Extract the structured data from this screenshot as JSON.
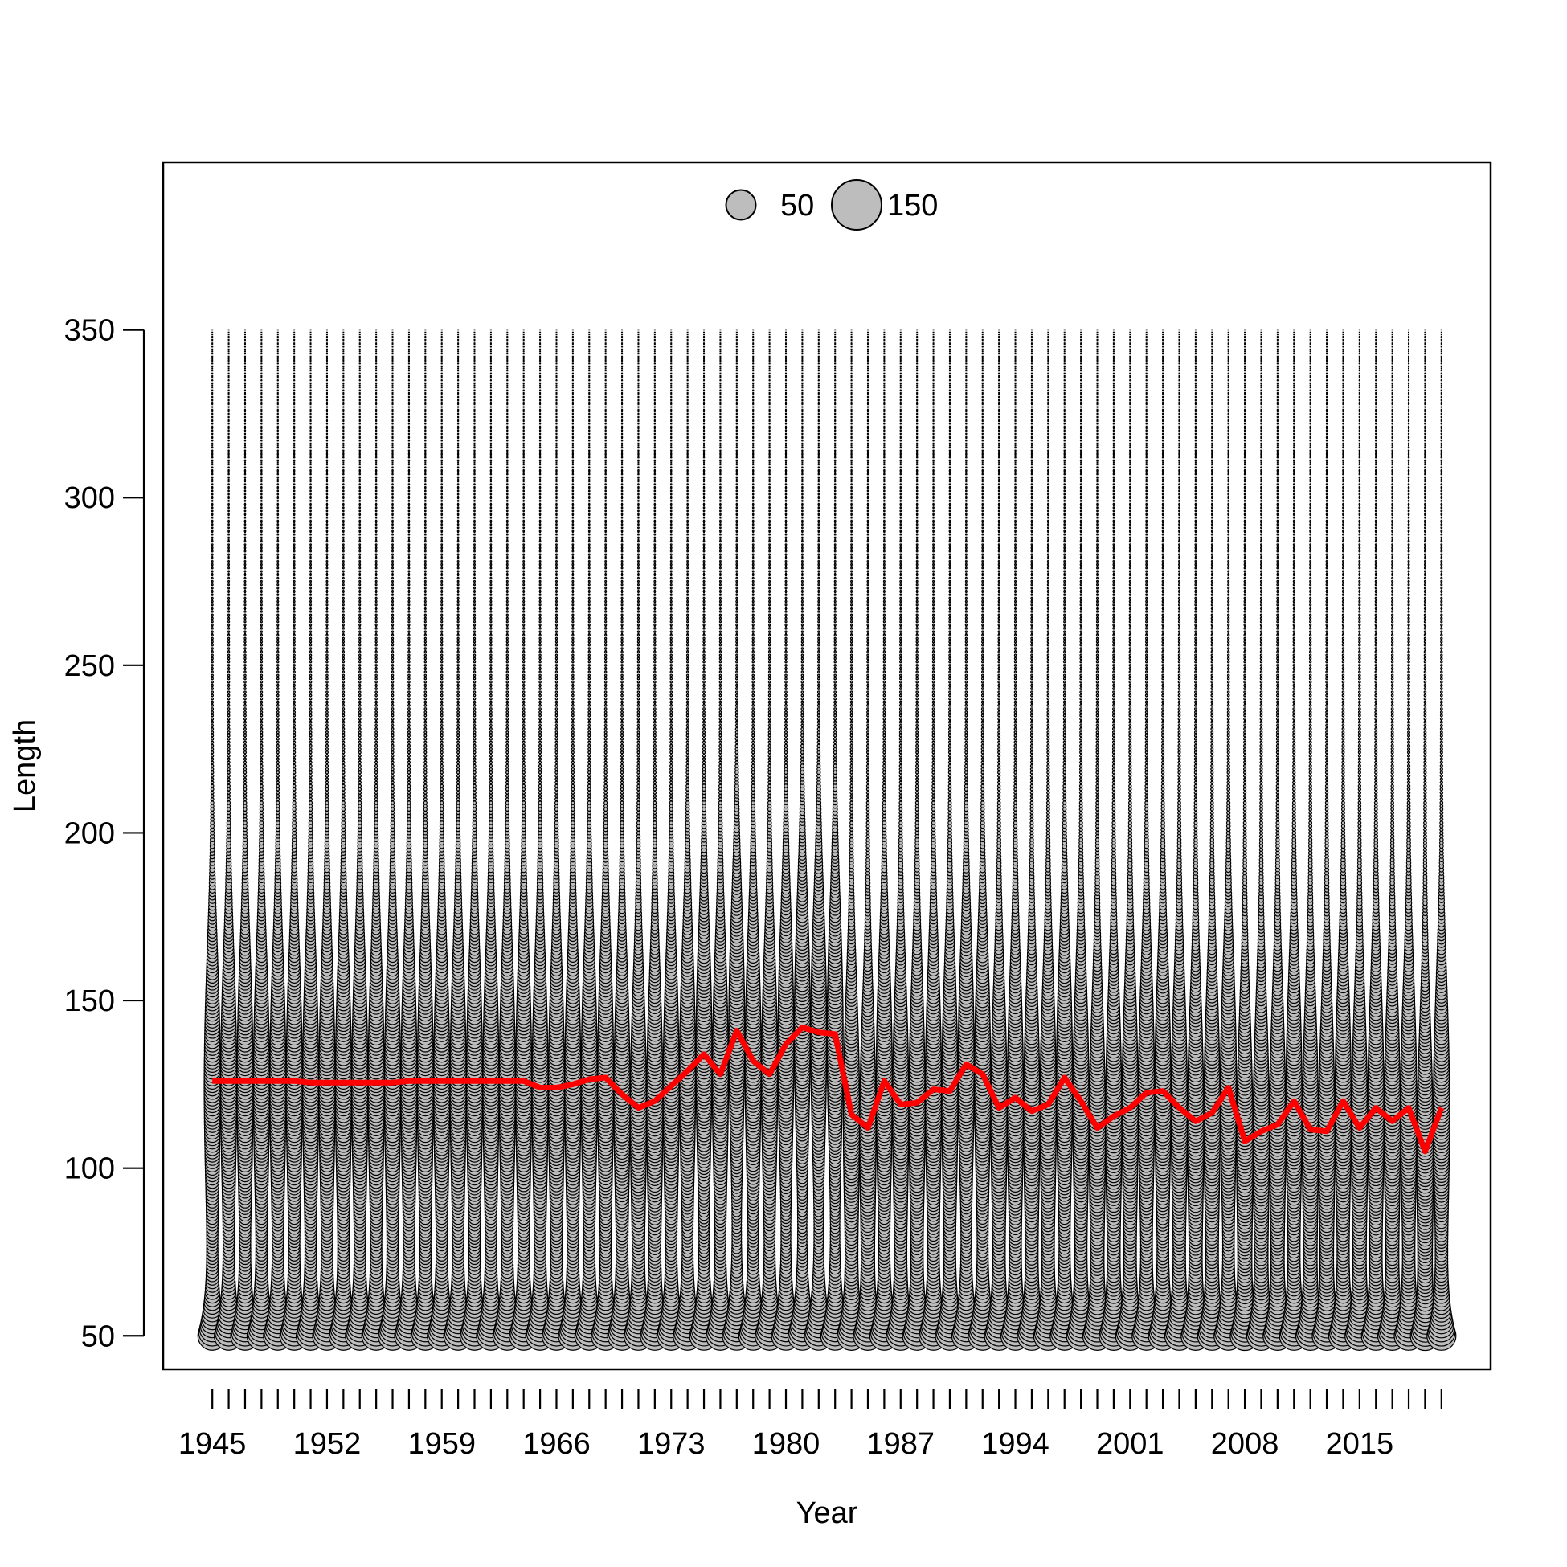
{
  "chart_data": {
    "type": "scatter",
    "subtype": "bubble",
    "title": "",
    "xlabel": "Year",
    "ylabel": "Length",
    "xlim": [
      1942,
      2023
    ],
    "ylim": [
      40,
      400
    ],
    "x_ticks": [
      1945,
      1952,
      1959,
      1966,
      1973,
      1980,
      1987,
      1994,
      2001,
      2008,
      2015
    ],
    "y_ticks": [
      50,
      100,
      150,
      200,
      250,
      300,
      350
    ],
    "years": [
      1945,
      2020
    ],
    "length_bins": [
      50,
      350,
      1
    ],
    "legend": {
      "placement": "top-center",
      "entries": [
        {
          "label": "50",
          "size": 50
        },
        {
          "label": "150",
          "size": 150
        }
      ]
    },
    "colors": {
      "bubble_fill": "#bdbdbd",
      "bubble_stroke": "#000000",
      "mean_line": "#ff0000"
    },
    "series": [
      {
        "type": "line",
        "values": [
          [
            1945,
            126
          ],
          [
            1946,
            126
          ],
          [
            1947,
            126
          ],
          [
            1948,
            126
          ],
          [
            1949,
            126
          ],
          [
            1950,
            126
          ],
          [
            1951,
            125.5
          ],
          [
            1952,
            125.5
          ],
          [
            1953,
            125.5
          ],
          [
            1954,
            125.5
          ],
          [
            1955,
            125.5
          ],
          [
            1956,
            125.5
          ],
          [
            1957,
            126
          ],
          [
            1958,
            126
          ],
          [
            1959,
            126
          ],
          [
            1960,
            126
          ],
          [
            1961,
            126
          ],
          [
            1962,
            126
          ],
          [
            1963,
            126
          ],
          [
            1964,
            126
          ],
          [
            1965,
            124
          ],
          [
            1966,
            124
          ],
          [
            1967,
            125
          ],
          [
            1968,
            126.5
          ],
          [
            1969,
            127
          ],
          [
            1970,
            122
          ],
          [
            1971,
            118
          ],
          [
            1972,
            120
          ],
          [
            1973,
            124.5
          ],
          [
            1974,
            129
          ],
          [
            1975,
            134
          ],
          [
            1976,
            128
          ],
          [
            1977,
            141
          ],
          [
            1978,
            132
          ],
          [
            1979,
            128
          ],
          [
            1980,
            137
          ],
          [
            1981,
            142
          ],
          [
            1982,
            140.5
          ],
          [
            1983,
            140
          ],
          [
            1984,
            116
          ],
          [
            1985,
            112
          ],
          [
            1986,
            126
          ],
          [
            1987,
            119
          ],
          [
            1988,
            119.5
          ],
          [
            1989,
            123.5
          ],
          [
            1990,
            123
          ],
          [
            1991,
            131
          ],
          [
            1992,
            128
          ],
          [
            1993,
            118
          ],
          [
            1994,
            121
          ],
          [
            1995,
            117
          ],
          [
            1996,
            119
          ],
          [
            1997,
            127
          ],
          [
            1998,
            120
          ],
          [
            1999,
            112
          ],
          [
            2000,
            115.5
          ],
          [
            2001,
            118
          ],
          [
            2002,
            122.5
          ],
          [
            2003,
            123
          ],
          [
            2004,
            118
          ],
          [
            2005,
            114
          ],
          [
            2006,
            116.5
          ],
          [
            2007,
            124
          ],
          [
            2008,
            108
          ],
          [
            2009,
            111
          ],
          [
            2010,
            113
          ],
          [
            2011,
            120
          ],
          [
            2012,
            111.5
          ],
          [
            2013,
            111
          ],
          [
            2014,
            120
          ],
          [
            2015,
            112
          ],
          [
            2016,
            118
          ],
          [
            2017,
            114
          ],
          [
            2018,
            118
          ],
          [
            2019,
            105
          ],
          [
            2020,
            118
          ]
        ]
      }
    ]
  }
}
